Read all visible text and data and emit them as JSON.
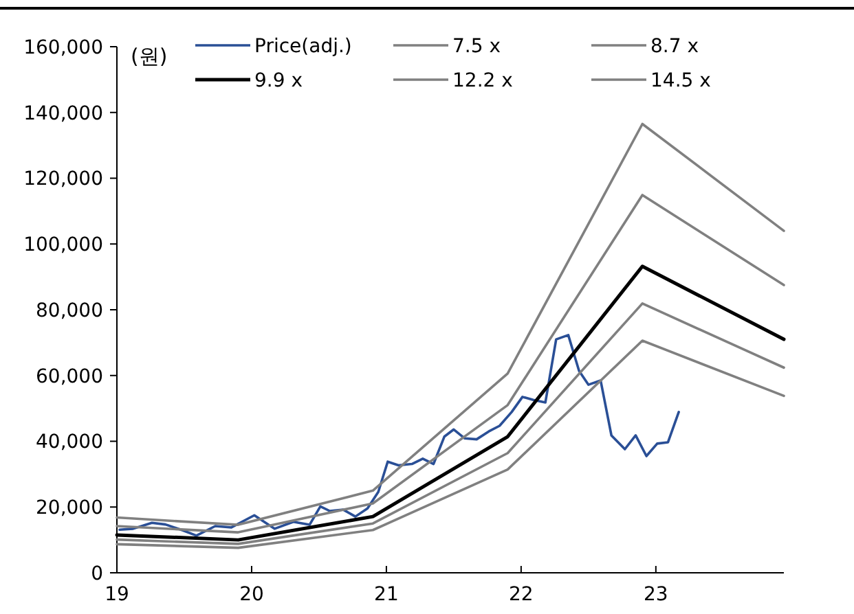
{
  "chart_data": {
    "type": "line",
    "ylabel": "(원)",
    "xlim": [
      19,
      23.95
    ],
    "xticks": [
      19,
      20,
      21,
      22,
      23
    ],
    "ylim": [
      0,
      160000
    ],
    "yticks": [
      {
        "value": 0,
        "label": "0"
      },
      {
        "value": 20000,
        "label": "20,000"
      },
      {
        "value": 40000,
        "label": "40,000"
      },
      {
        "value": 60000,
        "label": "60,000"
      },
      {
        "value": 80000,
        "label": "80,000"
      },
      {
        "value": 100000,
        "label": "100,000"
      },
      {
        "value": 120000,
        "label": "120,000"
      },
      {
        "value": 140000,
        "label": "140,000"
      },
      {
        "value": 160000,
        "label": "160,000"
      }
    ],
    "grid": false,
    "legend": "top",
    "marker": "none",
    "line_style": "solid",
    "series": [
      {
        "name": "Price(adj.)",
        "color": "#2a4f96",
        "x": [
          19.02,
          19.12,
          19.26,
          19.36,
          19.49,
          19.59,
          19.73,
          19.85,
          20.02,
          20.17,
          20.31,
          20.43,
          20.51,
          20.58,
          20.68,
          20.77,
          20.86,
          20.94,
          21.01,
          21.09,
          21.19,
          21.27,
          21.35,
          21.43,
          21.5,
          21.58,
          21.67,
          21.76,
          21.84,
          21.93,
          22.01,
          22.09,
          22.18,
          22.26,
          22.35,
          22.43,
          22.5,
          22.59,
          22.67,
          22.77,
          22.85,
          22.93,
          23.01,
          23.09,
          23.17
        ],
        "values": [
          13100,
          13400,
          15200,
          14700,
          12900,
          11300,
          14200,
          13800,
          17500,
          13400,
          15500,
          14600,
          20200,
          18800,
          19200,
          17100,
          19600,
          24600,
          33800,
          32700,
          33100,
          34700,
          33100,
          41400,
          43600,
          40900,
          40600,
          43000,
          44700,
          48900,
          53500,
          52600,
          51800,
          71000,
          72300,
          61400,
          57200,
          58500,
          41800,
          37600,
          41800,
          35500,
          39300,
          39700,
          48900
        ]
      },
      {
        "name": "7.5 x",
        "color": "#808080",
        "x": [
          19,
          19.9,
          20.9,
          21.9,
          22.9,
          23.95
        ],
        "values": [
          8700,
          7600,
          13000,
          31400,
          70600,
          53800
        ]
      },
      {
        "name": "8.7 x",
        "color": "#808080",
        "x": [
          19,
          19.9,
          20.9,
          21.9,
          22.9,
          23.95
        ],
        "values": [
          10100,
          8800,
          15000,
          36400,
          81900,
          62400
        ]
      },
      {
        "name": "9.9 x",
        "color": "#000000",
        "x": [
          19,
          19.9,
          20.9,
          21.9,
          22.9,
          23.95
        ],
        "values": [
          11500,
          10000,
          17100,
          41400,
          93200,
          71000
        ]
      },
      {
        "name": "12.2 x",
        "color": "#808080",
        "x": [
          19,
          19.9,
          20.9,
          21.9,
          22.9,
          23.95
        ],
        "values": [
          14200,
          12300,
          21100,
          51000,
          114900,
          87500
        ]
      },
      {
        "name": "14.5 x",
        "color": "#808080",
        "x": [
          19,
          19.9,
          20.9,
          21.9,
          22.9,
          23.95
        ],
        "values": [
          16800,
          14600,
          25000,
          60600,
          136500,
          104000
        ]
      }
    ]
  }
}
